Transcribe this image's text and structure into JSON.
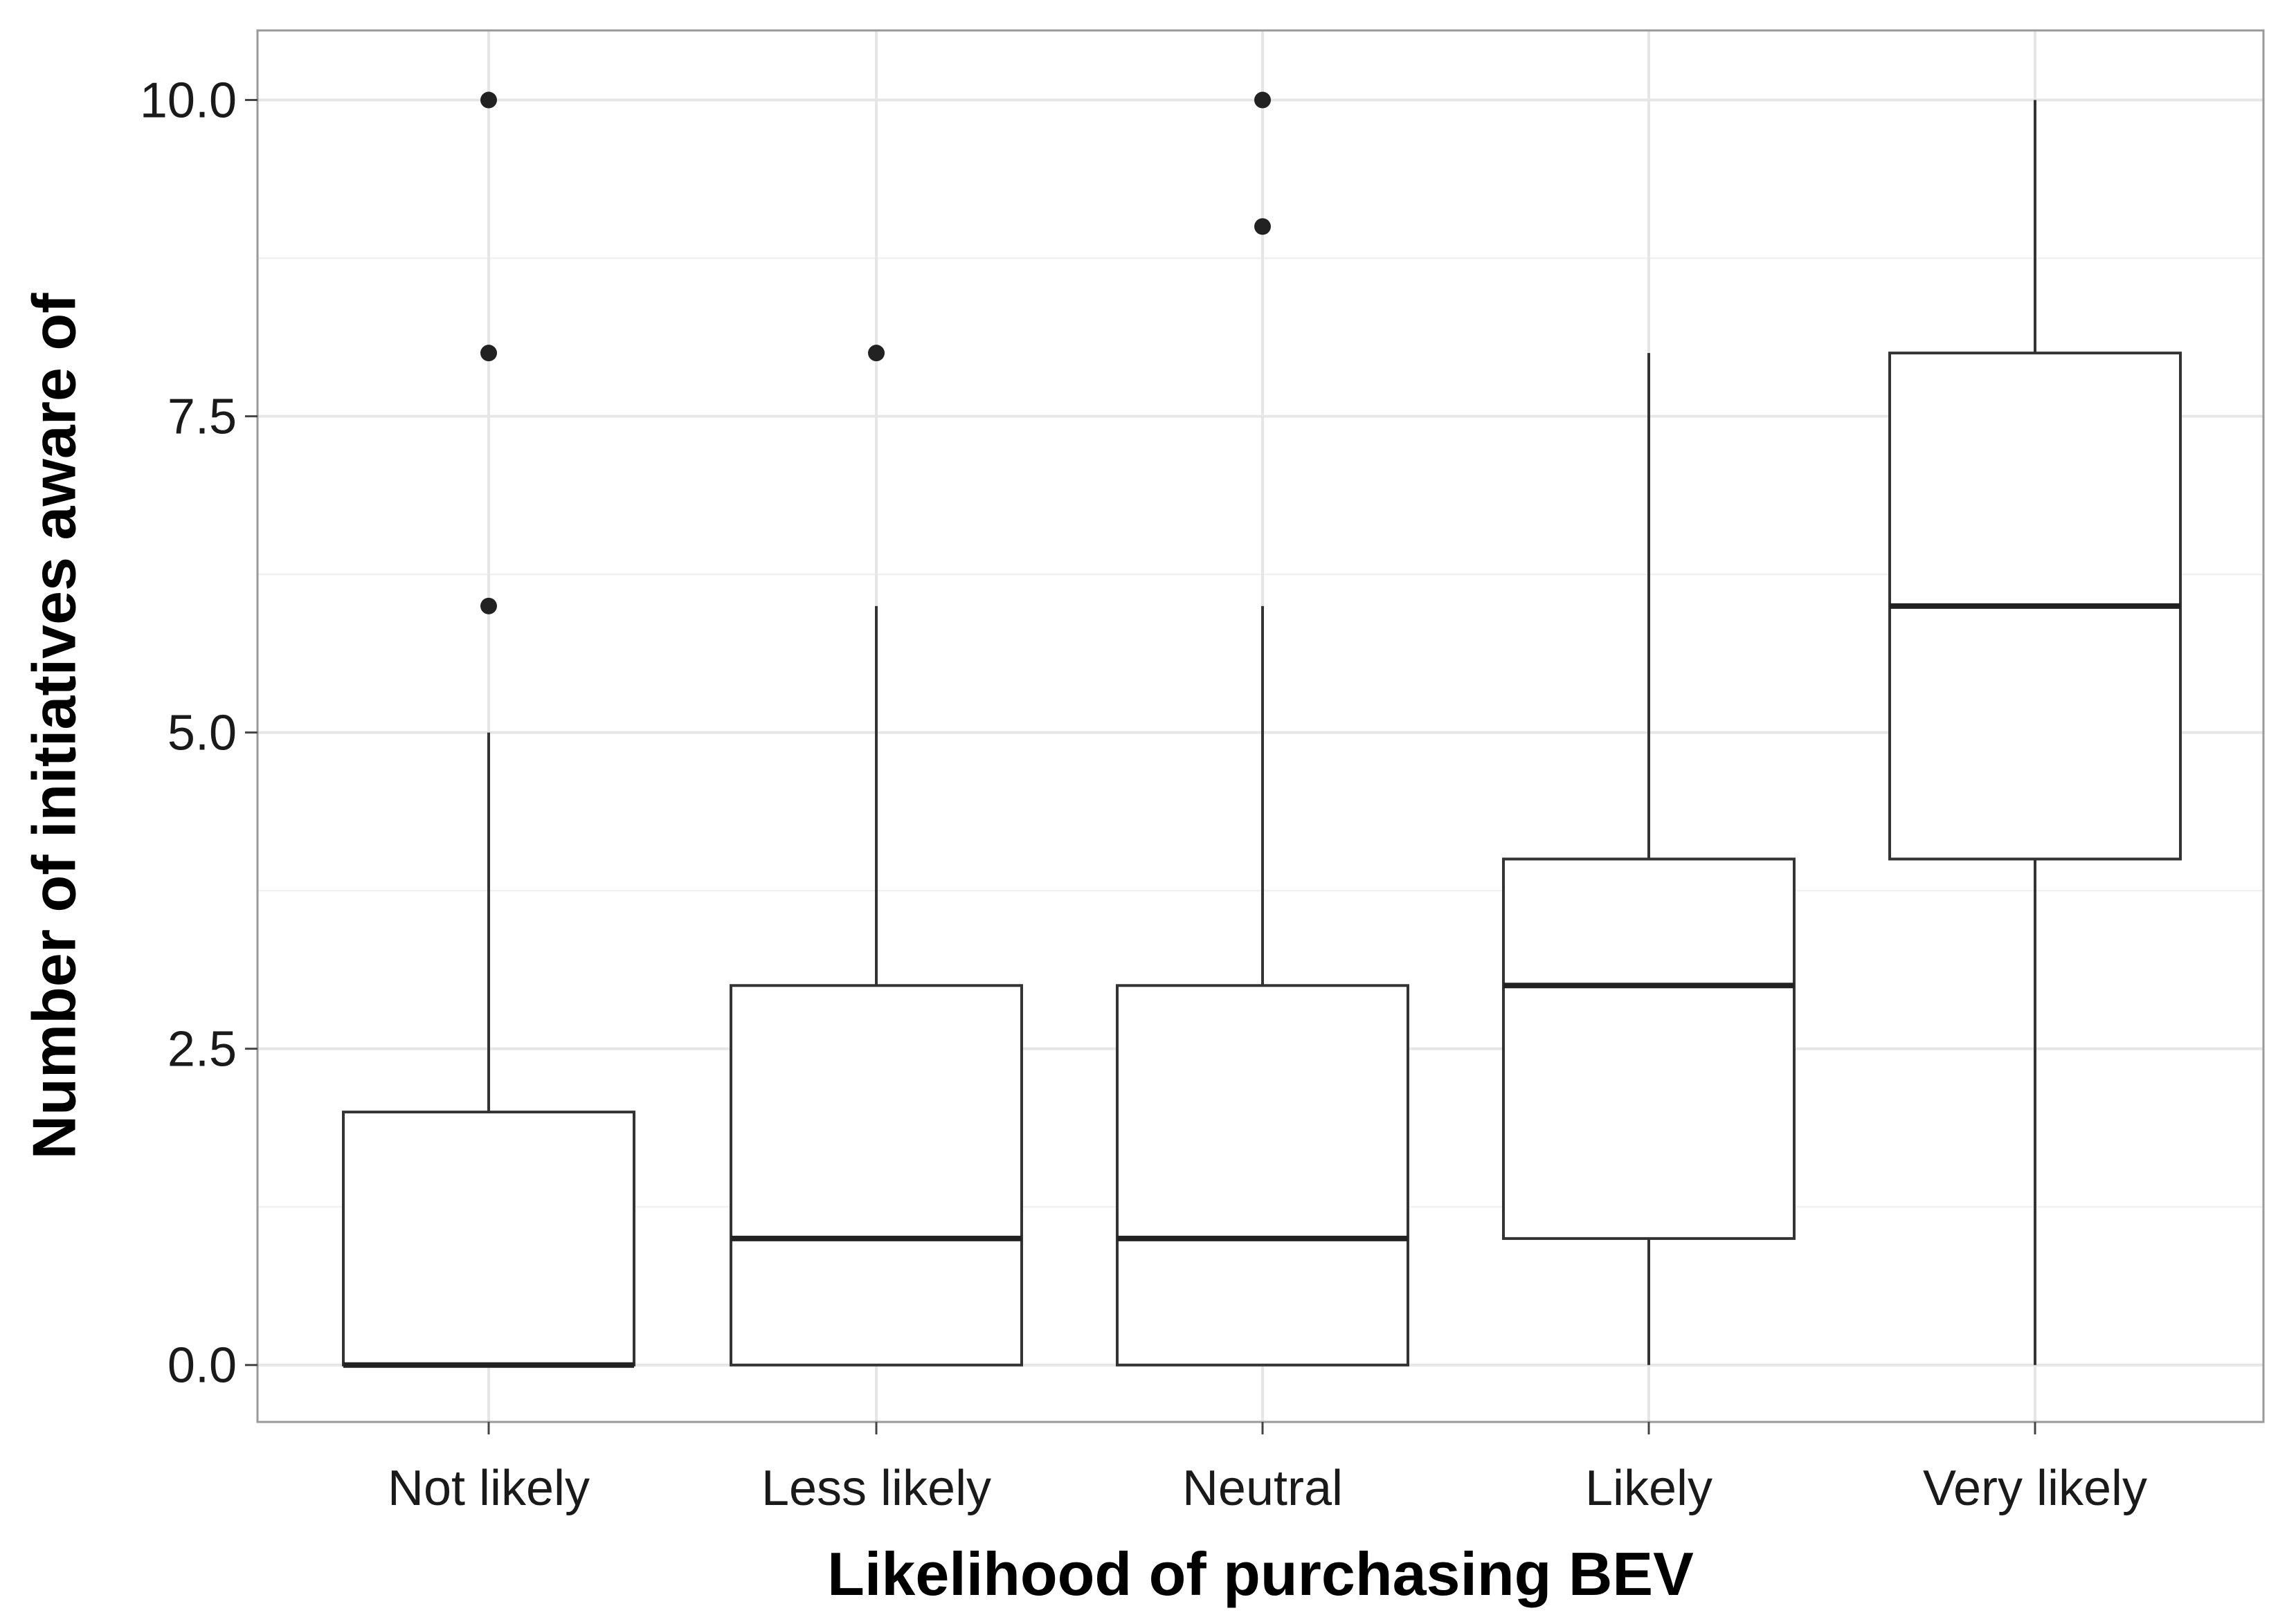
{
  "chart_data": {
    "type": "boxplot",
    "title": "",
    "xlabel": "Likelihood of purchasing BEV",
    "ylabel": "Number of initiatives aware of",
    "ylim": [
      -0.45,
      10.55
    ],
    "yticks": [
      0.0,
      2.5,
      5.0,
      7.5,
      10.0
    ],
    "ytick_labels": [
      "0.0",
      "2.5",
      "5.0",
      "7.5",
      "10.0"
    ],
    "grid": true,
    "categories": [
      "Not likely",
      "Less likely",
      "Neutral",
      "Likely",
      "Very likely"
    ],
    "boxes": [
      {
        "category": "Not likely",
        "lower_whisker": 0,
        "q1": 0,
        "median": 0,
        "q3": 2,
        "upper_whisker": 5,
        "outliers": [
          6,
          8,
          10
        ]
      },
      {
        "category": "Less likely",
        "lower_whisker": 0,
        "q1": 0,
        "median": 1,
        "q3": 3,
        "upper_whisker": 6,
        "outliers": [
          8
        ]
      },
      {
        "category": "Neutral",
        "lower_whisker": 0,
        "q1": 0,
        "median": 1,
        "q3": 3,
        "upper_whisker": 6,
        "outliers": [
          9,
          10
        ]
      },
      {
        "category": "Likely",
        "lower_whisker": 0,
        "q1": 1,
        "median": 3,
        "q3": 4,
        "upper_whisker": 8,
        "outliers": []
      },
      {
        "category": "Very likely",
        "lower_whisker": 0,
        "q1": 4,
        "median": 6,
        "q3": 8,
        "upper_whisker": 10,
        "outliers": []
      }
    ],
    "colors": {
      "box_fill": "#ffffff",
      "box_stroke": "#333333",
      "outlier": "#222222",
      "grid": "#e6e6e6",
      "panel_border": "#9a9a9a"
    }
  }
}
